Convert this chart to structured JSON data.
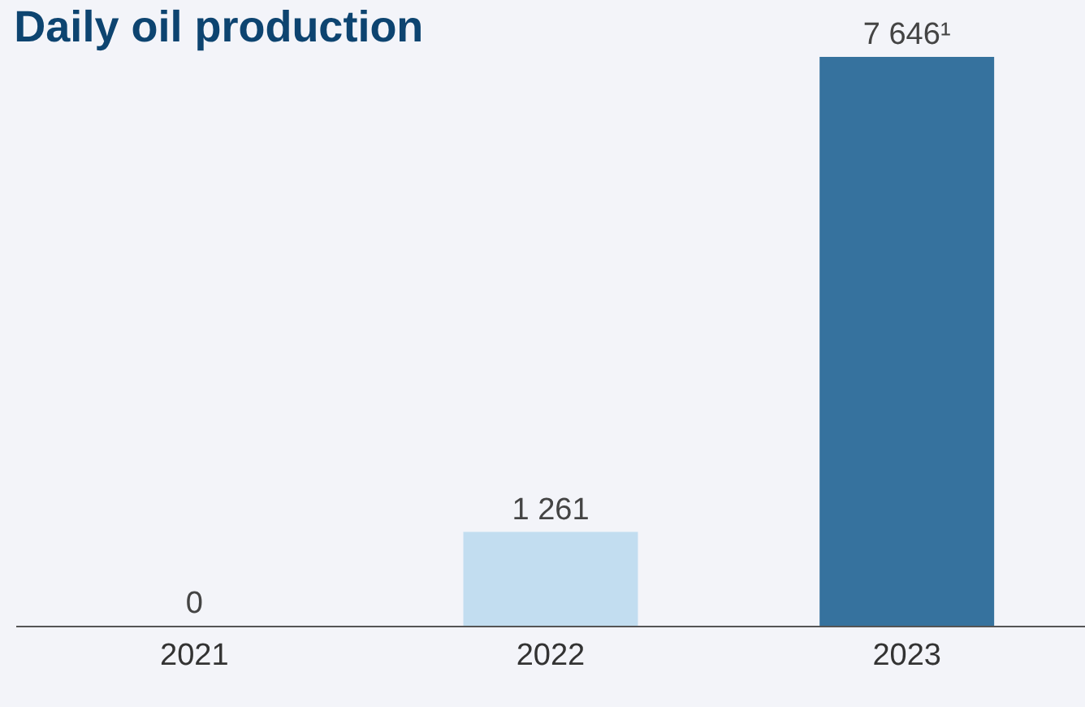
{
  "chart_data": {
    "type": "bar",
    "title": "Daily oil production",
    "categories": [
      "2021",
      "2022",
      "2023"
    ],
    "values": [
      0,
      1261,
      7646
    ],
    "colors": [
      "#c2ddf0",
      "#c2ddf0",
      "#36729e"
    ],
    "value_labels": [
      "0",
      "1 261",
      "7 646¹"
    ],
    "tick_labels": "x",
    "grid": false,
    "legend": false
  }
}
